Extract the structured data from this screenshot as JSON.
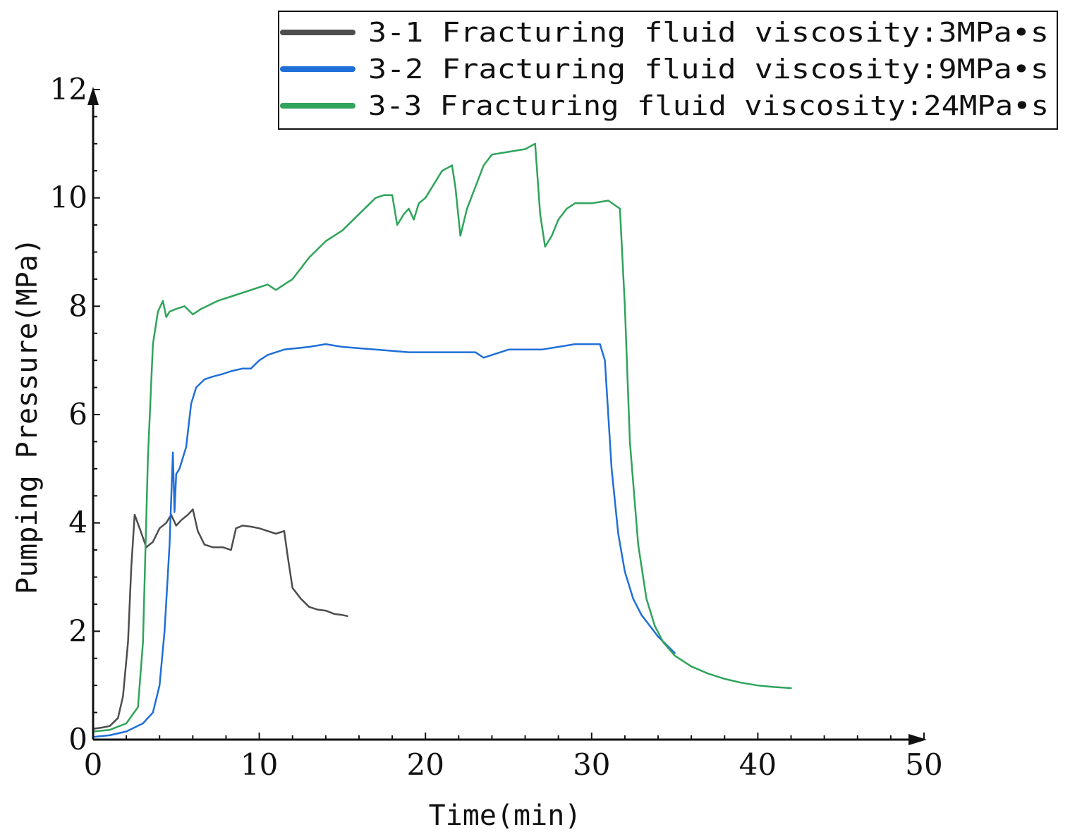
{
  "chart_data": {
    "type": "line",
    "title": "",
    "xlabel": "Time(min)",
    "ylabel": "Pumping Pressure(MPa)",
    "xlim": [
      0,
      50
    ],
    "ylim": [
      0,
      12
    ],
    "x_ticks": [
      "0",
      "10",
      "20",
      "30",
      "40",
      "50"
    ],
    "y_ticks": [
      "0",
      "2",
      "4",
      "6",
      "8",
      "10",
      "12"
    ],
    "grid": false,
    "legend_position": "top-right",
    "series": [
      {
        "name": "3-1 Fracturing fluid viscosity:3MPa•s",
        "color": "#4d4d4d",
        "x": [
          0,
          0.5,
          1,
          1.5,
          1.8,
          2.1,
          2.3,
          2.5,
          2.8,
          3.2,
          3.6,
          4.0,
          4.4,
          4.7,
          5.0,
          5.3,
          5.7,
          6.0,
          6.3,
          6.7,
          7.2,
          7.8,
          8.3,
          8.6,
          9.0,
          9.5,
          10.0,
          10.5,
          11.0,
          11.5,
          11.7,
          12.0,
          12.5,
          13.0,
          13.5,
          14.0,
          14.5,
          15.0,
          15.3
        ],
        "y": [
          0.2,
          0.22,
          0.25,
          0.4,
          0.8,
          1.8,
          3.2,
          4.15,
          3.9,
          3.55,
          3.65,
          3.9,
          4.0,
          4.15,
          3.95,
          4.05,
          4.15,
          4.25,
          3.85,
          3.6,
          3.55,
          3.55,
          3.5,
          3.9,
          3.95,
          3.93,
          3.9,
          3.85,
          3.8,
          3.85,
          3.4,
          2.8,
          2.6,
          2.45,
          2.4,
          2.38,
          2.32,
          2.3,
          2.28
        ]
      },
      {
        "name": "3-2 Fracturing fluid viscosity:9MPa•s",
        "color": "#1f6fd8",
        "x": [
          0,
          1,
          2,
          3,
          3.6,
          4.0,
          4.3,
          4.6,
          4.8,
          4.9,
          5.0,
          5.2,
          5.6,
          5.9,
          6.2,
          6.7,
          7.2,
          7.8,
          8.3,
          9.0,
          9.5,
          10.0,
          10.5,
          11.5,
          13.0,
          14.0,
          15.0,
          17.0,
          19.0,
          21.0,
          23.0,
          23.5,
          25.0,
          27.0,
          29.0,
          30.5,
          30.8,
          31.2,
          31.6,
          32.0,
          32.5,
          33.0,
          33.5,
          34.0,
          34.5,
          35.0
        ],
        "y": [
          0.05,
          0.08,
          0.15,
          0.3,
          0.5,
          1.0,
          2.0,
          3.6,
          5.3,
          4.2,
          4.9,
          5.0,
          5.4,
          6.2,
          6.5,
          6.65,
          6.7,
          6.75,
          6.8,
          6.85,
          6.85,
          7.0,
          7.1,
          7.2,
          7.25,
          7.3,
          7.25,
          7.2,
          7.15,
          7.15,
          7.15,
          7.05,
          7.2,
          7.2,
          7.3,
          7.3,
          7.0,
          5.0,
          3.8,
          3.1,
          2.6,
          2.3,
          2.1,
          1.9,
          1.75,
          1.6
        ]
      },
      {
        "name": "3-3 Fracturing fluid viscosity:24MPa•s",
        "color": "#2fa45a",
        "x": [
          0,
          1,
          2,
          2.7,
          3.0,
          3.3,
          3.6,
          3.9,
          4.2,
          4.4,
          4.6,
          5.0,
          5.5,
          6.0,
          6.5,
          7.5,
          8.5,
          9.5,
          10.0,
          10.5,
          11.0,
          11.5,
          12.0,
          13.0,
          14.0,
          15.0,
          16.0,
          17.0,
          17.5,
          18.0,
          18.3,
          18.7,
          19.0,
          19.3,
          19.6,
          20.0,
          21.0,
          21.6,
          21.8,
          22.1,
          22.5,
          23.0,
          23.5,
          24.0,
          25.0,
          26.0,
          26.6,
          26.9,
          27.2,
          27.6,
          28.0,
          28.5,
          29.0,
          30.0,
          31.0,
          31.7,
          32.0,
          32.3,
          32.8,
          33.3,
          33.8,
          34.3,
          35.0,
          36.0,
          37.0,
          38.0,
          39.0,
          40.0,
          41.0,
          42.0
        ],
        "y": [
          0.15,
          0.18,
          0.3,
          0.6,
          1.8,
          5.2,
          7.3,
          7.9,
          8.1,
          7.8,
          7.9,
          7.95,
          8.0,
          7.85,
          7.95,
          8.1,
          8.2,
          8.3,
          8.35,
          8.4,
          8.3,
          8.4,
          8.5,
          8.9,
          9.2,
          9.4,
          9.7,
          10.0,
          10.05,
          10.05,
          9.5,
          9.7,
          9.8,
          9.6,
          9.9,
          10.0,
          10.5,
          10.6,
          10.2,
          9.3,
          9.8,
          10.2,
          10.6,
          10.8,
          10.85,
          10.9,
          11.0,
          9.7,
          9.1,
          9.3,
          9.6,
          9.8,
          9.9,
          9.9,
          9.95,
          9.8,
          8.0,
          5.5,
          3.6,
          2.6,
          2.1,
          1.8,
          1.55,
          1.35,
          1.22,
          1.12,
          1.05,
          1.0,
          0.97,
          0.95
        ]
      }
    ]
  }
}
